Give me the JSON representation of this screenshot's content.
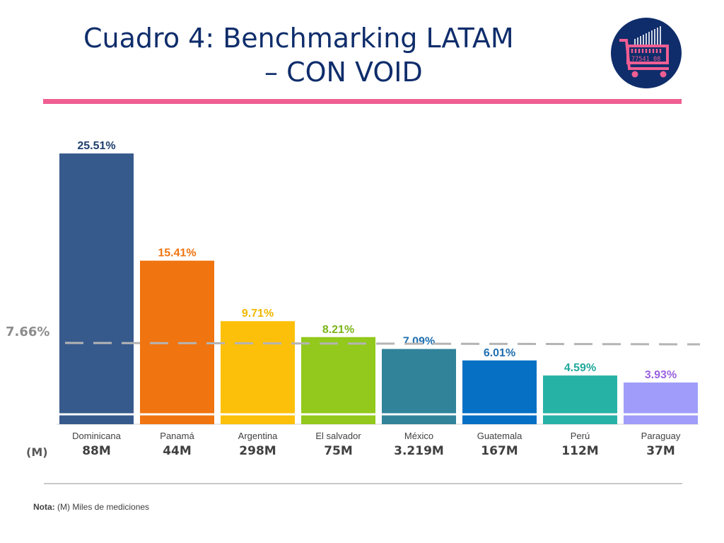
{
  "slide": {
    "title_line1": "Cuadro 4: Benchmarking LATAM",
    "title_line2": "– CON VOID",
    "average_label": "7.66%",
    "units_label": "(M)",
    "note_prefix": "Nota:",
    "note_text": " (M) Miles de mediciones"
  },
  "logo": {
    "icon": "shopping-cart-barcode-icon",
    "code_left": "77541",
    "code_right": "08",
    "bg": "#0f2d6b",
    "accent": "#ef5e92"
  },
  "chart_data": {
    "type": "bar",
    "categories": [
      "Dominicana",
      "Panamá",
      "Argentina",
      "El salvador",
      "México",
      "Guatemala",
      "Perú",
      "Paraguay"
    ],
    "values": [
      25.51,
      15.41,
      9.71,
      8.21,
      7.09,
      6.01,
      4.59,
      3.93
    ],
    "value_labels": [
      "25.51%",
      "15.41%",
      "9.71%",
      "8.21%",
      "7.09%",
      "6.01%",
      "4.59%",
      "3.93%"
    ],
    "sample_sizes": [
      "88M",
      "44M",
      "298M",
      "75M",
      "3.219M",
      "167M",
      "112M",
      "37M"
    ],
    "colors": [
      "#375a8c",
      "#f07410",
      "#fcc00a",
      "#92c91c",
      "#31839a",
      "#0670c4",
      "#27b2a6",
      "#9f9df9"
    ],
    "label_colors": [
      "#1f3f6e",
      "#f07410",
      "#f0b800",
      "#7cb51a",
      "#1f6fb0",
      "#1f6fb0",
      "#20a89c",
      "#9a62e0"
    ],
    "average": 7.66,
    "average_style": "dashed gray line",
    "ylim": [
      0,
      28
    ],
    "grid": false,
    "xlabel": "",
    "ylabel": ""
  }
}
